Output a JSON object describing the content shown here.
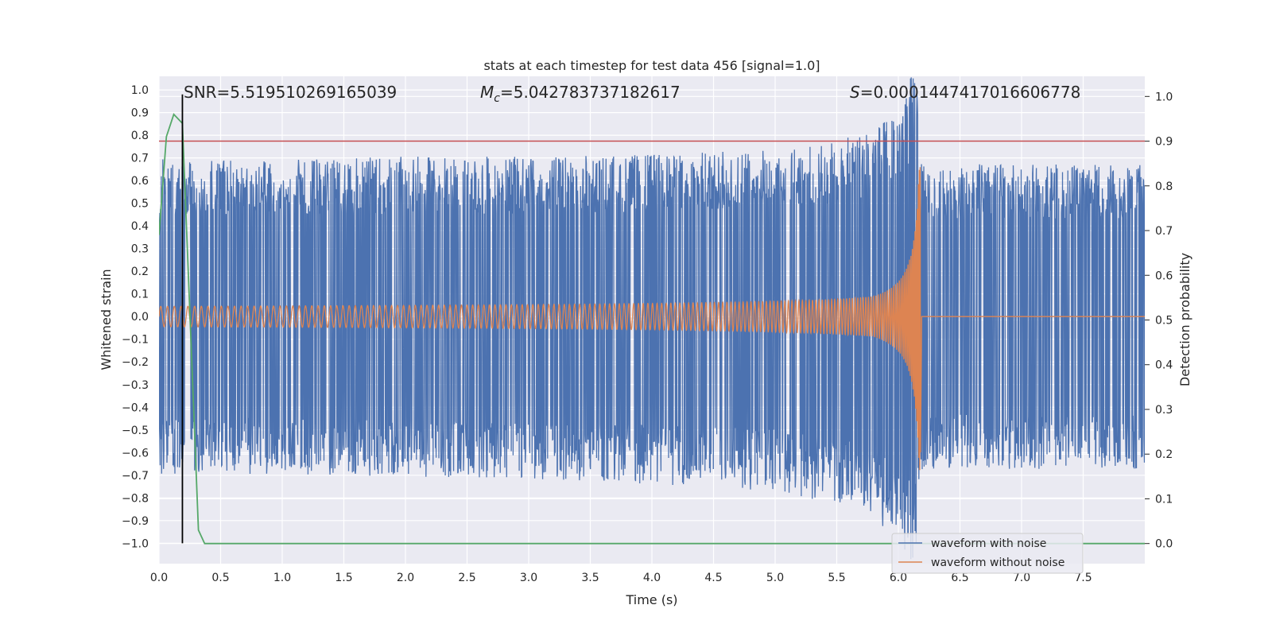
{
  "chart_data": {
    "type": "line",
    "title": "stats at each timestep for test data 456 [signal=1.0]",
    "xlabel": "Time (s)",
    "ylabel": "Whitened strain",
    "y2label": "Detection probability",
    "xlim": [
      0.0,
      8.0
    ],
    "ylim": [
      -1.09,
      1.06
    ],
    "y2lim": [
      -0.045,
      1.045
    ],
    "x_ticks": [
      "0.0",
      "0.5",
      "1.0",
      "1.5",
      "2.0",
      "2.5",
      "3.0",
      "3.5",
      "4.0",
      "4.5",
      "5.0",
      "5.5",
      "6.0",
      "6.5",
      "7.0",
      "7.5"
    ],
    "y_ticks": [
      "1.0",
      "0.9",
      "0.8",
      "0.7",
      "0.6",
      "0.5",
      "0.4",
      "0.3",
      "0.2",
      "0.1",
      "0.0",
      "−0.1",
      "−0.2",
      "−0.3",
      "−0.4",
      "−0.5",
      "−0.6",
      "−0.7",
      "−0.8",
      "−0.9",
      "−1.0"
    ],
    "y2_ticks": [
      "1.0",
      "0.9",
      "0.8",
      "0.7",
      "0.6",
      "0.5",
      "0.4",
      "0.3",
      "0.2",
      "0.1",
      "0.0"
    ],
    "annotations": {
      "snr": "SNR=5.519510269165039",
      "mc_symbol": "M",
      "mc_subscript": "c",
      "mc_value": "=5.042783737182617",
      "s_symbol": "S",
      "s_value": "=0.0001447417016606778"
    },
    "series": [
      {
        "name": "waveform with noise",
        "color": "#4c72b0",
        "envelope": {
          "t": [
            0.0,
            1.0,
            2.0,
            3.0,
            4.0,
            5.0,
            5.5,
            5.8,
            6.0,
            6.1,
            6.15,
            6.17,
            6.2,
            7.0,
            8.0
          ],
          "upper": [
            0.62,
            0.62,
            0.63,
            0.63,
            0.64,
            0.66,
            0.69,
            0.74,
            0.82,
            0.95,
            0.97,
            0.62,
            0.6,
            0.6,
            0.6
          ],
          "lower": [
            -0.62,
            -0.62,
            -0.63,
            -0.64,
            -0.66,
            -0.69,
            -0.74,
            -0.8,
            -0.88,
            -0.96,
            -0.97,
            -0.62,
            -0.6,
            -0.6,
            -0.6
          ]
        }
      },
      {
        "name": "waveform without noise",
        "color": "#dd8452",
        "chirp": {
          "t_start": 0.0,
          "t_merger": 6.18,
          "t_end": 8.0,
          "start_amplitude": 0.045,
          "peak_amplitude": 0.68,
          "post_merger_value": 0.0
        }
      },
      {
        "name": "Detection probability",
        "axis": "right",
        "color": "#55a868",
        "x": [
          0.0,
          0.06,
          0.12,
          0.19,
          0.26,
          0.32,
          0.37,
          8.0
        ],
        "y": [
          0.69,
          0.91,
          0.96,
          0.94,
          0.45,
          0.03,
          0.0,
          0.0
        ]
      }
    ],
    "threshold": {
      "axis": "right",
      "value": 0.9,
      "color": "#c44e52"
    },
    "marker_line": {
      "x": 0.19,
      "y_from": -1.0,
      "y_to": 0.98,
      "color": "#000000"
    },
    "legend": {
      "location": "lower right",
      "entries": [
        "waveform with noise",
        "waveform without noise"
      ]
    }
  }
}
